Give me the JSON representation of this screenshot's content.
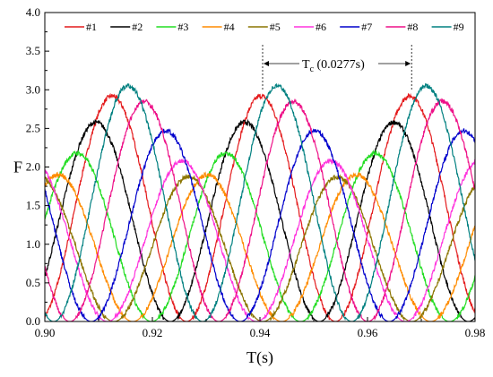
{
  "chart_data": {
    "type": "line",
    "xlabel": "T(s)",
    "ylabel": "F",
    "xlim": [
      0.9,
      0.98
    ],
    "ylim": [
      0.0,
      4.0
    ],
    "x_ticks": [
      "0.90",
      "0.92",
      "0.94",
      "0.96",
      "0.98"
    ],
    "y_ticks": [
      "0.0",
      "0.5",
      "1.0",
      "1.5",
      "2.0",
      "2.5",
      "3.0",
      "3.5",
      "4.0"
    ],
    "period_s": 0.0277,
    "legend_position": "top",
    "series": [
      {
        "name": "#1",
        "color": "#e41a1c",
        "peak_x": 0.9125,
        "peak": 2.92
      },
      {
        "name": "#2",
        "color": "#000000",
        "peak_x": 0.9095,
        "peak": 2.58
      },
      {
        "name": "#3",
        "color": "#22dd22",
        "peak_x": 0.906,
        "peak": 2.18
      },
      {
        "name": "#4",
        "color": "#ff8c00",
        "peak_x": 0.9025,
        "peak": 1.9
      },
      {
        "name": "#5",
        "color": "#8b7500",
        "peak_x": 0.899,
        "peak": 1.87
      },
      {
        "name": "#6",
        "color": "#ff33dd",
        "peak_x": 0.9255,
        "peak": 2.08
      },
      {
        "name": "#7",
        "color": "#0000cc",
        "peak_x": 0.9225,
        "peak": 2.47
      },
      {
        "name": "#8",
        "color": "#ee1188",
        "peak_x": 0.9185,
        "peak": 2.85
      },
      {
        "name": "#9",
        "color": "#008080",
        "peak_x": 0.9155,
        "peak": 3.05
      }
    ],
    "annotation": {
      "main": "T",
      "sub": "c",
      "rest": " (0.0277s)",
      "x_start": 0.9405,
      "x_end": 0.9682
    }
  }
}
